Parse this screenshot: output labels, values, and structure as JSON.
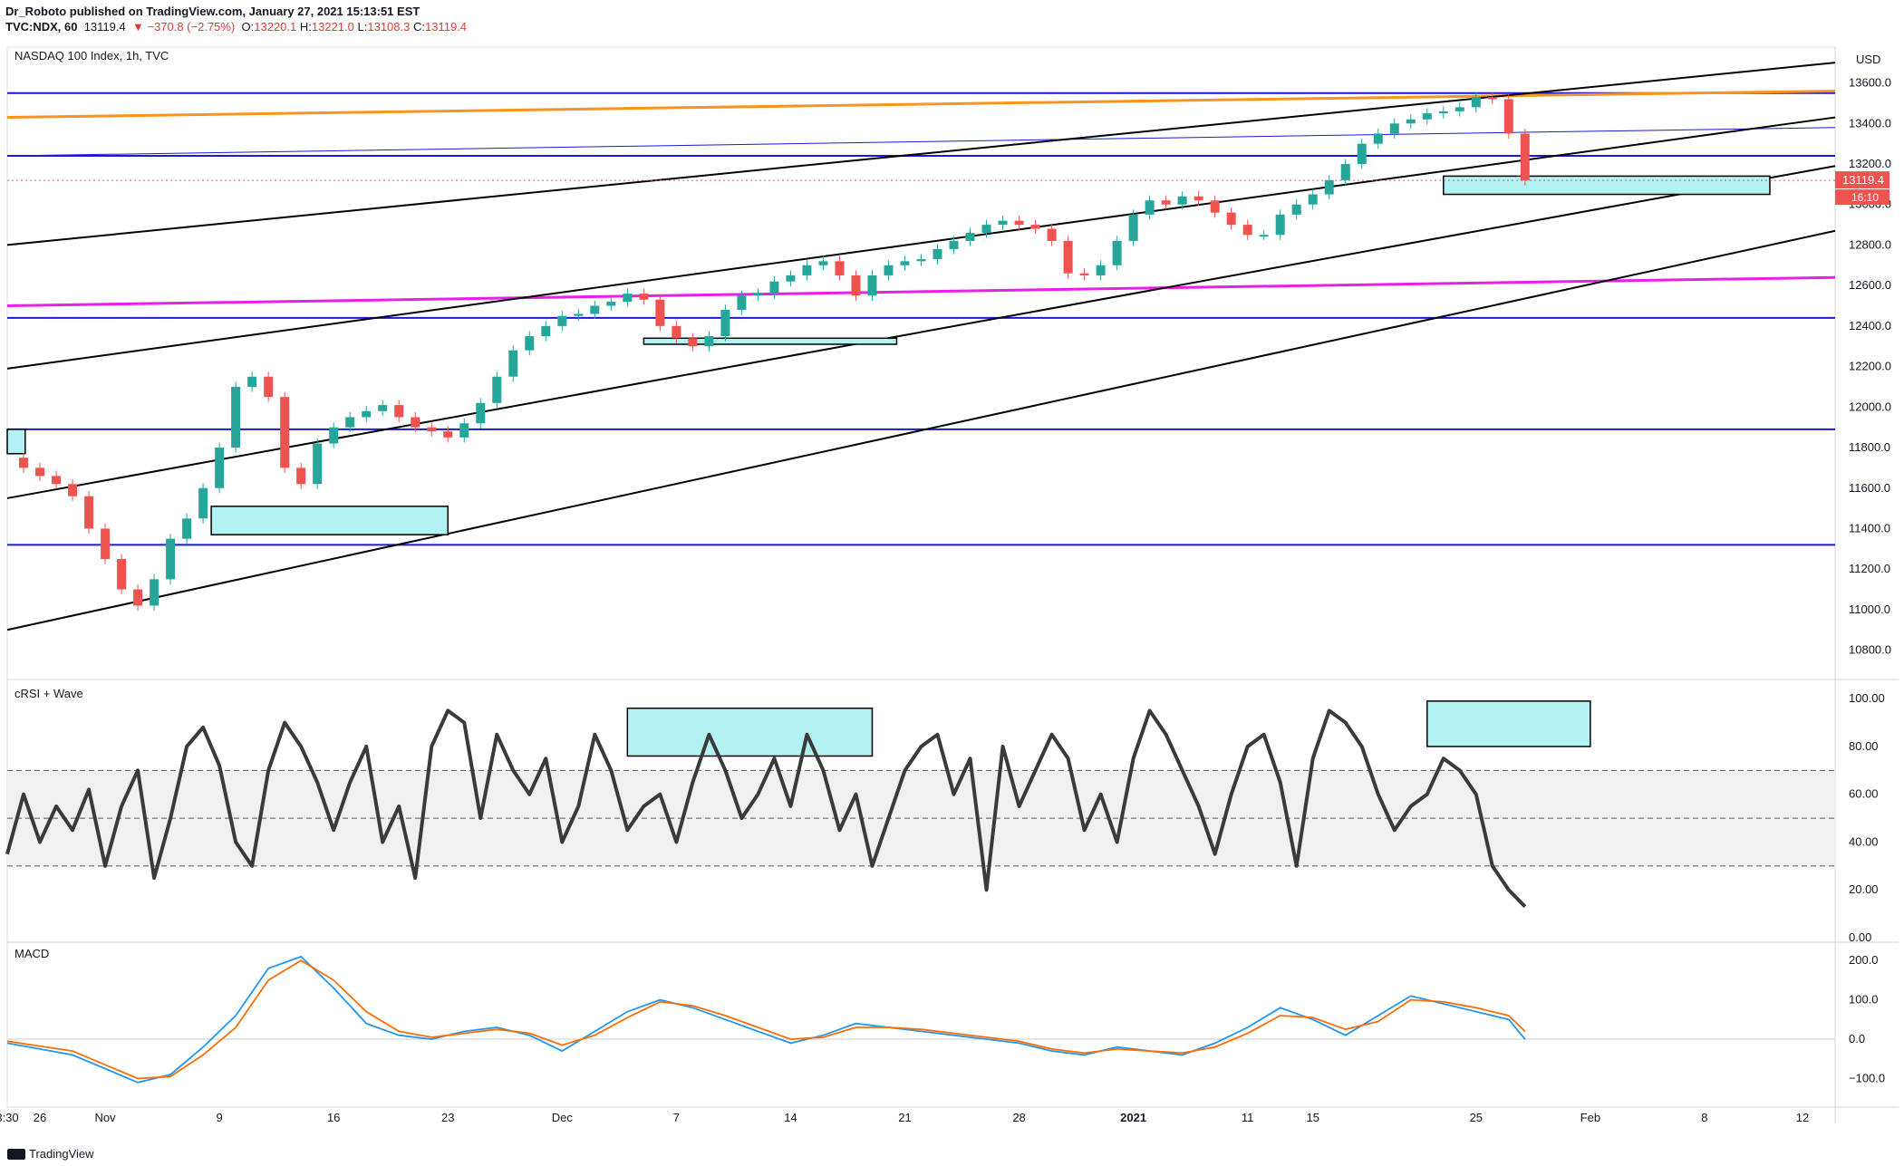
{
  "header": {
    "line1": "Dr_Roboto published on TradingView.com, January 27, 2021 15:13:51 EST",
    "symbol": "TVC:NDX, 60",
    "last": "13119.4",
    "change": "▼ −370.8 (−2.75%)",
    "ohlc_o_label": "O:",
    "ohlc_o": "13220.1",
    "ohlc_h_label": "H:",
    "ohlc_h": "13221.0",
    "ohlc_l_label": "L:",
    "ohlc_l": "13108.3",
    "ohlc_c_label": "C:",
    "ohlc_c": "13119.4"
  },
  "footer": {
    "brand": "TradingView"
  },
  "colors": {
    "up": "#26a69a",
    "down": "#ef5350",
    "blue_line": "#1a1ad6",
    "orange": "#f7941d",
    "magenta": "#e91ee9",
    "cyan_box": "#b2f2f2",
    "osc": "#3a3a3a"
  },
  "chart_data": [
    {
      "type": "line",
      "title": "NASDAQ 100 Index, 1h, TVC",
      "y_unit": "USD",
      "ylim": [
        10700,
        13750
      ],
      "y_ticks": [
        10800,
        11000,
        11200,
        11400,
        11600,
        11800,
        12000,
        12200,
        12400,
        12600,
        12800,
        13000,
        13200,
        13400,
        13600
      ],
      "y_tick_labels": [
        "10800.0",
        "11000.0",
        "11200.0",
        "11400.0",
        "11600.0",
        "11800.0",
        "12000.0",
        "12200.0",
        "12400.0",
        "12600.0",
        "12800.0",
        "13000.0",
        "13200.0",
        "13400.0",
        "13600.0"
      ],
      "x_tick_labels": [
        "3:30",
        "26",
        "Nov",
        "9",
        "16",
        "23",
        "Dec",
        "7",
        "14",
        "21",
        "28",
        "2021",
        "11",
        "15",
        "25",
        "Feb",
        "8",
        "12"
      ],
      "x_tick_days": [
        0,
        2,
        6,
        13,
        20,
        27,
        34,
        41,
        48,
        55,
        62,
        69,
        76,
        80,
        90,
        97,
        104,
        110
      ],
      "last_price_label": "13119.4",
      "countdown_label": "16:10",
      "series": [
        {
          "x": [
            0,
            1,
            2,
            3,
            4,
            5,
            6,
            7,
            8,
            9,
            10,
            11,
            12,
            13,
            14,
            15,
            16,
            17,
            18,
            19,
            20,
            21,
            22,
            23,
            24,
            25,
            26,
            27,
            28,
            29,
            30,
            31,
            32,
            33,
            34,
            35,
            36,
            37,
            38,
            39,
            40,
            41,
            42,
            43,
            44,
            45,
            46,
            47,
            48,
            49,
            50,
            51,
            52,
            53,
            54,
            55,
            56,
            57,
            58,
            59,
            60,
            61,
            62,
            63,
            64,
            65,
            66,
            67,
            68,
            69,
            70,
            71,
            72,
            73,
            74,
            75,
            76,
            77,
            78,
            79,
            80,
            81,
            82,
            83,
            84,
            85,
            86,
            87,
            88,
            89,
            90,
            91,
            92,
            93
          ],
          "values": [
            11750,
            11700,
            11660,
            11620,
            11560,
            11400,
            11250,
            11100,
            11020,
            11150,
            11350,
            11450,
            11600,
            11800,
            12100,
            12150,
            12050,
            11700,
            11620,
            11820,
            11900,
            11950,
            11980,
            12010,
            11950,
            11900,
            11880,
            11850,
            11920,
            12020,
            12150,
            12280,
            12350,
            12400,
            12450,
            12460,
            12500,
            12520,
            12560,
            12530,
            12400,
            12340,
            12300,
            12350,
            12480,
            12550,
            12560,
            12620,
            12650,
            12700,
            12720,
            12650,
            12550,
            12650,
            12700,
            12720,
            12730,
            12780,
            12820,
            12860,
            12900,
            12920,
            12900,
            12880,
            12820,
            12660,
            12650,
            12700,
            12820,
            12950,
            13020,
            13000,
            13040,
            13020,
            12960,
            12900,
            12850,
            12850,
            12950,
            13000,
            13050,
            13120,
            13200,
            13300,
            13350,
            13400,
            13420,
            13450,
            13460,
            13480,
            13530,
            13520,
            13350,
            13119
          ]
        }
      ]
    },
    {
      "type": "line",
      "title": "cRSI + Wave",
      "ylim": [
        0,
        105
      ],
      "y_ticks": [
        0,
        20,
        40,
        60,
        80,
        100
      ],
      "y_tick_labels": [
        "0.00",
        "20.00",
        "40.00",
        "60.00",
        "80.00",
        "100.00"
      ],
      "levels": [
        30,
        50,
        70
      ],
      "series": [
        {
          "x": [
            0,
            1,
            2,
            3,
            4,
            5,
            6,
            7,
            8,
            9,
            10,
            11,
            12,
            13,
            14,
            15,
            16,
            17,
            18,
            19,
            20,
            21,
            22,
            23,
            24,
            25,
            26,
            27,
            28,
            29,
            30,
            31,
            32,
            33,
            34,
            35,
            36,
            37,
            38,
            39,
            40,
            41,
            42,
            43,
            44,
            45,
            46,
            47,
            48,
            49,
            50,
            51,
            52,
            53,
            54,
            55,
            56,
            57,
            58,
            59,
            60,
            61,
            62,
            63,
            64,
            65,
            66,
            67,
            68,
            69,
            70,
            71,
            72,
            73,
            74,
            75,
            76,
            77,
            78,
            79,
            80,
            81,
            82,
            83,
            84,
            85,
            86,
            87,
            88,
            89,
            90,
            91,
            92,
            93
          ],
          "values": [
            35,
            60,
            40,
            55,
            45,
            62,
            30,
            55,
            70,
            25,
            50,
            80,
            88,
            72,
            40,
            30,
            70,
            90,
            80,
            65,
            45,
            65,
            80,
            40,
            55,
            25,
            80,
            95,
            90,
            50,
            85,
            70,
            60,
            75,
            40,
            55,
            85,
            70,
            45,
            55,
            60,
            40,
            65,
            85,
            70,
            50,
            60,
            75,
            55,
            85,
            70,
            45,
            60,
            30,
            50,
            70,
            80,
            85,
            60,
            75,
            20,
            80,
            55,
            70,
            85,
            75,
            45,
            60,
            40,
            75,
            95,
            85,
            70,
            55,
            35,
            60,
            80,
            85,
            65,
            30,
            75,
            95,
            90,
            80,
            60,
            45,
            55,
            60,
            75,
            70,
            60,
            30,
            20,
            13
          ]
        }
      ]
    },
    {
      "type": "line",
      "title": "MACD",
      "ylim": [
        -145,
        235
      ],
      "y_ticks": [
        -100,
        0,
        100,
        200
      ],
      "y_tick_labels": [
        "−100.0",
        "0.0",
        "100.0",
        "200.0"
      ],
      "series": [
        {
          "name": "MACD",
          "x": [
            0,
            4,
            8,
            10,
            12,
            14,
            16,
            18,
            20,
            22,
            24,
            26,
            28,
            30,
            32,
            34,
            36,
            38,
            40,
            42,
            44,
            46,
            48,
            50,
            52,
            54,
            56,
            58,
            60,
            62,
            64,
            66,
            68,
            70,
            72,
            74,
            76,
            78,
            80,
            82,
            84,
            86,
            88,
            90,
            92,
            93
          ],
          "values": [
            -10,
            -40,
            -110,
            -90,
            -20,
            60,
            180,
            210,
            130,
            40,
            10,
            0,
            20,
            30,
            10,
            -30,
            20,
            70,
            100,
            80,
            50,
            20,
            -10,
            10,
            40,
            30,
            20,
            10,
            0,
            -10,
            -30,
            -40,
            -20,
            -30,
            -40,
            -10,
            30,
            80,
            50,
            10,
            60,
            110,
            90,
            70,
            50,
            0
          ]
        },
        {
          "name": "Signal",
          "x": [
            0,
            4,
            8,
            10,
            12,
            14,
            16,
            18,
            20,
            22,
            24,
            26,
            28,
            30,
            32,
            34,
            36,
            38,
            40,
            42,
            44,
            46,
            48,
            50,
            52,
            54,
            56,
            58,
            60,
            62,
            64,
            66,
            68,
            70,
            72,
            74,
            76,
            78,
            80,
            82,
            84,
            86,
            88,
            90,
            92,
            93
          ],
          "values": [
            -5,
            -30,
            -100,
            -95,
            -40,
            30,
            150,
            200,
            150,
            70,
            20,
            5,
            15,
            25,
            15,
            -15,
            10,
            55,
            95,
            85,
            60,
            30,
            0,
            5,
            30,
            30,
            25,
            15,
            5,
            -5,
            -25,
            -35,
            -25,
            -30,
            -35,
            -20,
            15,
            60,
            55,
            25,
            45,
            100,
            95,
            80,
            60,
            20
          ]
        }
      ]
    }
  ]
}
